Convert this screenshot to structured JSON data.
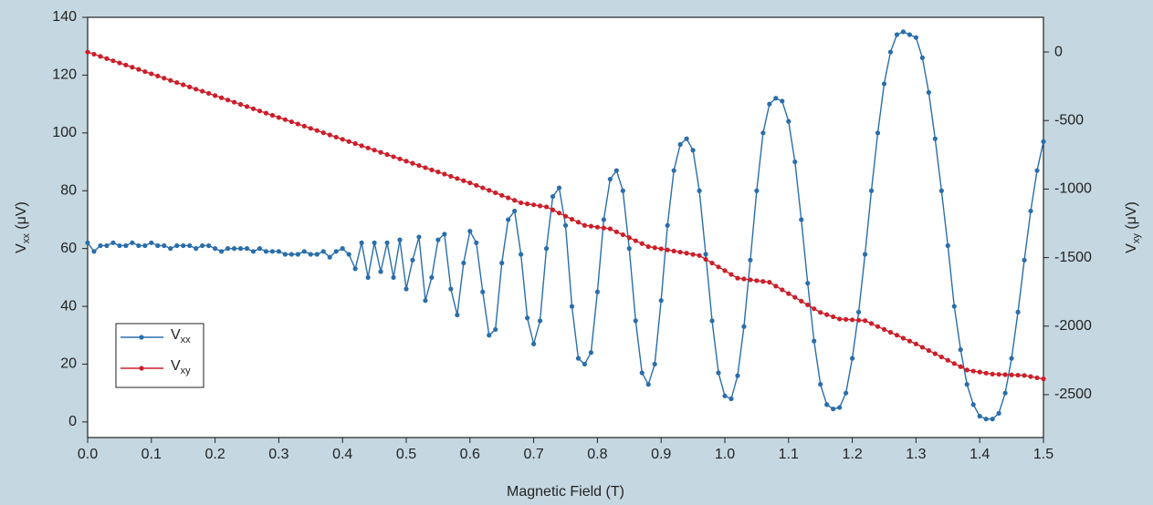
{
  "chart_data": {
    "type": "line",
    "x_label": "Magnetic Field (T)",
    "y_label": "Vxx (μV)",
    "y2_label": "Vxy (μV)",
    "xlim": [
      0,
      1.5
    ],
    "xticks": [
      {
        "value": 0,
        "label": "0.0"
      },
      0.1,
      0.2,
      0.3,
      0.4,
      0.5,
      0.6,
      0.7,
      0.8,
      0.9,
      {
        "value": 1,
        "label": "1.0"
      },
      1.1,
      1.2,
      1.3,
      1.4,
      1.5
    ],
    "ylim": [
      -5.4,
      140
    ],
    "yticks": [
      0,
      20,
      40,
      60,
      80,
      100,
      120,
      140
    ],
    "y2lim": [
      -2813,
      253
    ],
    "y2ticks": [
      -2500,
      -2000,
      -1500,
      -1000,
      -500,
      0
    ],
    "legend": "lower-left",
    "x": [
      0,
      0.01,
      0.02,
      0.03,
      0.04,
      0.05,
      0.06,
      0.07,
      0.08,
      0.09,
      0.1,
      0.11,
      0.12,
      0.13,
      0.14,
      0.15,
      0.16,
      0.17,
      0.18,
      0.19,
      0.2,
      0.21,
      0.22,
      0.23,
      0.24,
      0.25,
      0.26,
      0.27,
      0.28,
      0.29,
      0.3,
      0.31,
      0.32,
      0.33,
      0.34,
      0.35,
      0.36,
      0.37,
      0.38,
      0.39,
      0.4,
      0.41,
      0.42,
      0.43,
      0.44,
      0.45,
      0.46,
      0.47,
      0.48,
      0.49,
      0.5,
      0.51,
      0.52,
      0.53,
      0.54,
      0.55,
      0.56,
      0.57,
      0.58,
      0.59,
      0.6,
      0.61,
      0.62,
      0.63,
      0.64,
      0.65,
      0.66,
      0.67,
      0.68,
      0.69,
      0.7,
      0.71,
      0.72,
      0.73,
      0.74,
      0.75,
      0.76,
      0.77,
      0.78,
      0.79,
      0.8,
      0.81,
      0.82,
      0.83,
      0.84,
      0.85,
      0.86,
      0.87,
      0.88,
      0.89,
      0.9,
      0.91,
      0.92,
      0.93,
      0.94,
      0.95,
      0.96,
      0.97,
      0.98,
      0.99,
      1,
      1.01,
      1.02,
      1.03,
      1.04,
      1.05,
      1.06,
      1.07,
      1.08,
      1.09,
      1.1,
      1.11,
      1.12,
      1.13,
      1.14,
      1.15,
      1.16,
      1.17,
      1.18,
      1.19,
      1.2,
      1.21,
      1.22,
      1.23,
      1.24,
      1.25,
      1.26,
      1.27,
      1.28,
      1.29,
      1.3,
      1.31,
      1.32,
      1.33,
      1.34,
      1.35,
      1.36,
      1.37,
      1.38,
      1.39,
      1.4,
      1.41,
      1.42,
      1.43,
      1.44,
      1.45,
      1.46,
      1.47,
      1.48,
      1.49,
      1.5
    ],
    "series": [
      {
        "name": "Vxx",
        "color": "#2a6eaa",
        "values": [
          62,
          59,
          61,
          61,
          62,
          61,
          61,
          62,
          61,
          61,
          62,
          61,
          61,
          60,
          61,
          61,
          61,
          60,
          61,
          61,
          60,
          59,
          60,
          60,
          60,
          60,
          59,
          60,
          59,
          59,
          59,
          58,
          58,
          58,
          59,
          58,
          58,
          59,
          57,
          59,
          60,
          58,
          53,
          62,
          50,
          62,
          52,
          62,
          50,
          63,
          46,
          56,
          64,
          42,
          50,
          63,
          65,
          46,
          37,
          55,
          66,
          62,
          45,
          30,
          32,
          55,
          70,
          73,
          58,
          36,
          27,
          35,
          60,
          78,
          81,
          68,
          40,
          22,
          20,
          24,
          45,
          70,
          84,
          87,
          80,
          60,
          35,
          17,
          13,
          20,
          42,
          68,
          87,
          96,
          98,
          94,
          80,
          58,
          35,
          17,
          9,
          8,
          16,
          33,
          56,
          80,
          100,
          110,
          112,
          111,
          104,
          90,
          70,
          48,
          28,
          13,
          6,
          4.5,
          5,
          10,
          22,
          38,
          58,
          80,
          100,
          117,
          128,
          134,
          135,
          134,
          133,
          126,
          114,
          98,
          80,
          61,
          40,
          25,
          13,
          6,
          2,
          1,
          1,
          3,
          10,
          22,
          38,
          56,
          73,
          87,
          97
        ]
      },
      {
        "name": "Vxy",
        "color": "#cc1f2a",
        "axis": "y2",
        "values": [
          0,
          -16,
          -32,
          -48,
          -64,
          -80,
          -95,
          -111,
          -127,
          -143,
          -159,
          -175,
          -191,
          -207,
          -223,
          -239,
          -255,
          -271,
          -286,
          -302,
          -318,
          -334,
          -350,
          -366,
          -382,
          -398,
          -414,
          -430,
          -446,
          -462,
          -478,
          -493,
          -509,
          -525,
          -541,
          -557,
          -573,
          -589,
          -605,
          -621,
          -637,
          -653,
          -668,
          -684,
          -700,
          -716,
          -732,
          -748,
          -764,
          -780,
          -796,
          -812,
          -828,
          -844,
          -860,
          -875,
          -891,
          -907,
          -923,
          -939,
          -955,
          -973,
          -991,
          -1009,
          -1027,
          -1046,
          -1064,
          -1082,
          -1100,
          -1108,
          -1115,
          -1123,
          -1130,
          -1152,
          -1175,
          -1198,
          -1220,
          -1242,
          -1265,
          -1271,
          -1278,
          -1284,
          -1290,
          -1312,
          -1333,
          -1355,
          -1377,
          -1398,
          -1420,
          -1428,
          -1436,
          -1444,
          -1452,
          -1460,
          -1468,
          -1477,
          -1485,
          -1513,
          -1540,
          -1568,
          -1595,
          -1623,
          -1650,
          -1656,
          -1662,
          -1668,
          -1674,
          -1680,
          -1708,
          -1735,
          -1763,
          -1790,
          -1818,
          -1845,
          -1873,
          -1900,
          -1916,
          -1932,
          -1948,
          -1951,
          -1954,
          -1957,
          -1960,
          -1981,
          -2003,
          -2024,
          -2045,
          -2066,
          -2088,
          -2109,
          -2130,
          -2154,
          -2178,
          -2201,
          -2225,
          -2249,
          -2273,
          -2296,
          -2320,
          -2328,
          -2335,
          -2343,
          -2350,
          -2352,
          -2354,
          -2356,
          -2358,
          -2360,
          -2368,
          -2377,
          -2385
        ]
      }
    ]
  }
}
